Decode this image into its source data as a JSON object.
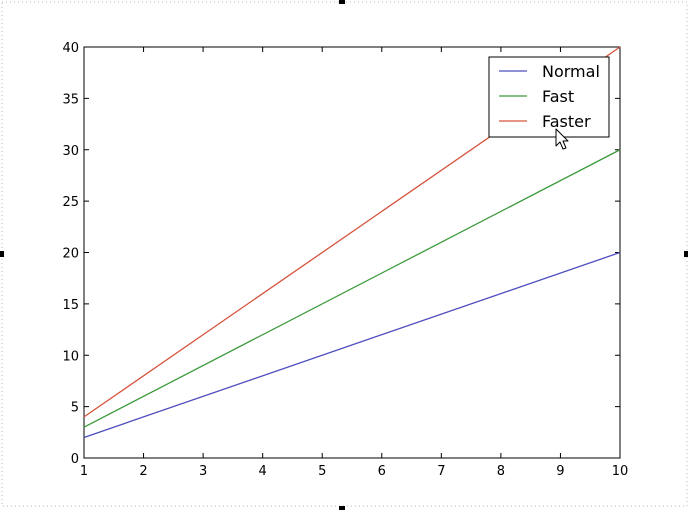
{
  "chart_data": {
    "type": "line",
    "title": "",
    "xlabel": "",
    "ylabel": "",
    "x": [
      1,
      10
    ],
    "xlim": [
      1,
      10
    ],
    "ylim": [
      0,
      40
    ],
    "xticks": [
      "1",
      "2",
      "3",
      "4",
      "5",
      "6",
      "7",
      "8",
      "9",
      "10"
    ],
    "yticks": [
      "0",
      "5",
      "10",
      "15",
      "20",
      "25",
      "30",
      "35",
      "40"
    ],
    "grid": false,
    "legend_position": "top-right",
    "series": [
      {
        "name": "Normal",
        "color": "#4d4dbd",
        "values": [
          2,
          20
        ]
      },
      {
        "name": "Fast",
        "color": "#3c9a3c",
        "values": [
          3,
          30
        ]
      },
      {
        "name": "Faster",
        "color": "#d6533c",
        "values": [
          4,
          40
        ]
      }
    ]
  }
}
